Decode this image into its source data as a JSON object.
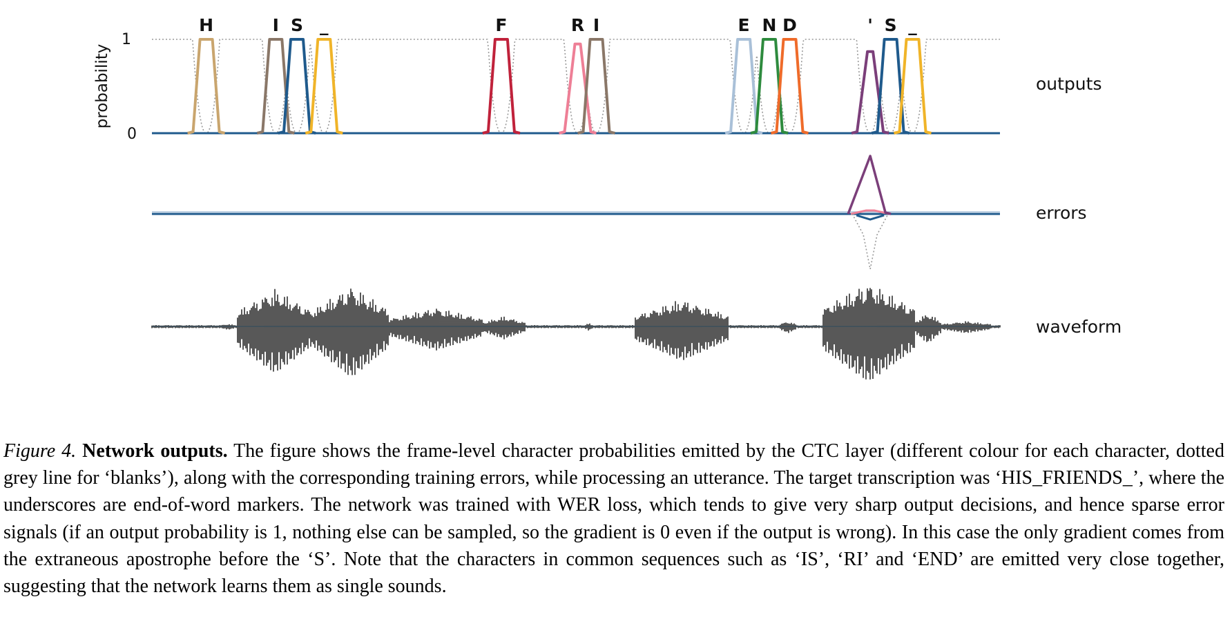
{
  "figure": {
    "y_axis_label": "probability",
    "y_ticks": [
      "1",
      "0"
    ],
    "row_labels": {
      "outputs": "outputs",
      "errors": "errors",
      "waveform": "waveform"
    },
    "char_labels": [
      "H",
      "I",
      "S",
      "_",
      "F",
      "R",
      "I",
      "E",
      "N",
      "D",
      "'",
      "S",
      "_"
    ],
    "colors": {
      "H": "#c9a56e",
      "I": "#8a7768",
      "S": "#1f5a8c",
      "underscore": "#f0b429",
      "F": "#c0223b",
      "R": "#ee7f96",
      "E": "#a9c0d8",
      "N": "#2e8b3e",
      "D": "#ef6b2a",
      "apostrophe": "#7b3f7a",
      "blank": "#999999",
      "waveform": "#111111"
    },
    "spikes": [
      {
        "char": "H",
        "t": 0.064,
        "peak": 1.0,
        "color": "H"
      },
      {
        "char": "I",
        "t": 0.146,
        "peak": 1.0,
        "color": "I"
      },
      {
        "char": "S",
        "t": 0.171,
        "peak": 1.0,
        "color": "S"
      },
      {
        "char": "_",
        "t": 0.203,
        "peak": 1.0,
        "color": "underscore"
      },
      {
        "char": "F",
        "t": 0.412,
        "peak": 1.0,
        "color": "F"
      },
      {
        "char": "R",
        "t": 0.502,
        "peak": 0.95,
        "color": "R"
      },
      {
        "char": "I",
        "t": 0.524,
        "peak": 1.0,
        "color": "I"
      },
      {
        "char": "E",
        "t": 0.698,
        "peak": 1.0,
        "color": "E"
      },
      {
        "char": "N",
        "t": 0.728,
        "peak": 1.0,
        "color": "N"
      },
      {
        "char": "D",
        "t": 0.752,
        "peak": 1.0,
        "color": "D"
      },
      {
        "char": "'",
        "t": 0.847,
        "peak": 0.87,
        "color": "apostrophe"
      },
      {
        "char": "S",
        "t": 0.871,
        "peak": 1.0,
        "color": "S"
      },
      {
        "char": "_",
        "t": 0.897,
        "peak": 1.0,
        "color": "underscore"
      }
    ],
    "error_spike": {
      "t": 0.847,
      "up": 0.7,
      "down": 0.6
    }
  },
  "caption": {
    "figure_label": "Figure 4.",
    "title": "Network outputs.",
    "text": "The figure shows the frame-level character probabilities emitted by the CTC layer (different colour for each character, dotted grey line for ‘blanks’), along with the corresponding training errors, while processing an utterance. The target transcription was ‘HIS_FRIENDS_’, where the underscores are end-of-word markers. The network was trained with WER loss, which tends to give very sharp output decisions, and hence sparse error signals (if an output probability is 1, nothing else can be sampled, so the gradient is 0 even if the output is wrong). In this case the only gradient comes from the extraneous apostrophe before the ‘S’. Note that the characters in common sequences such as ‘IS’, ‘RI’ and ‘END’ are emitted very close together, suggesting that the network learns them as single sounds."
  }
}
